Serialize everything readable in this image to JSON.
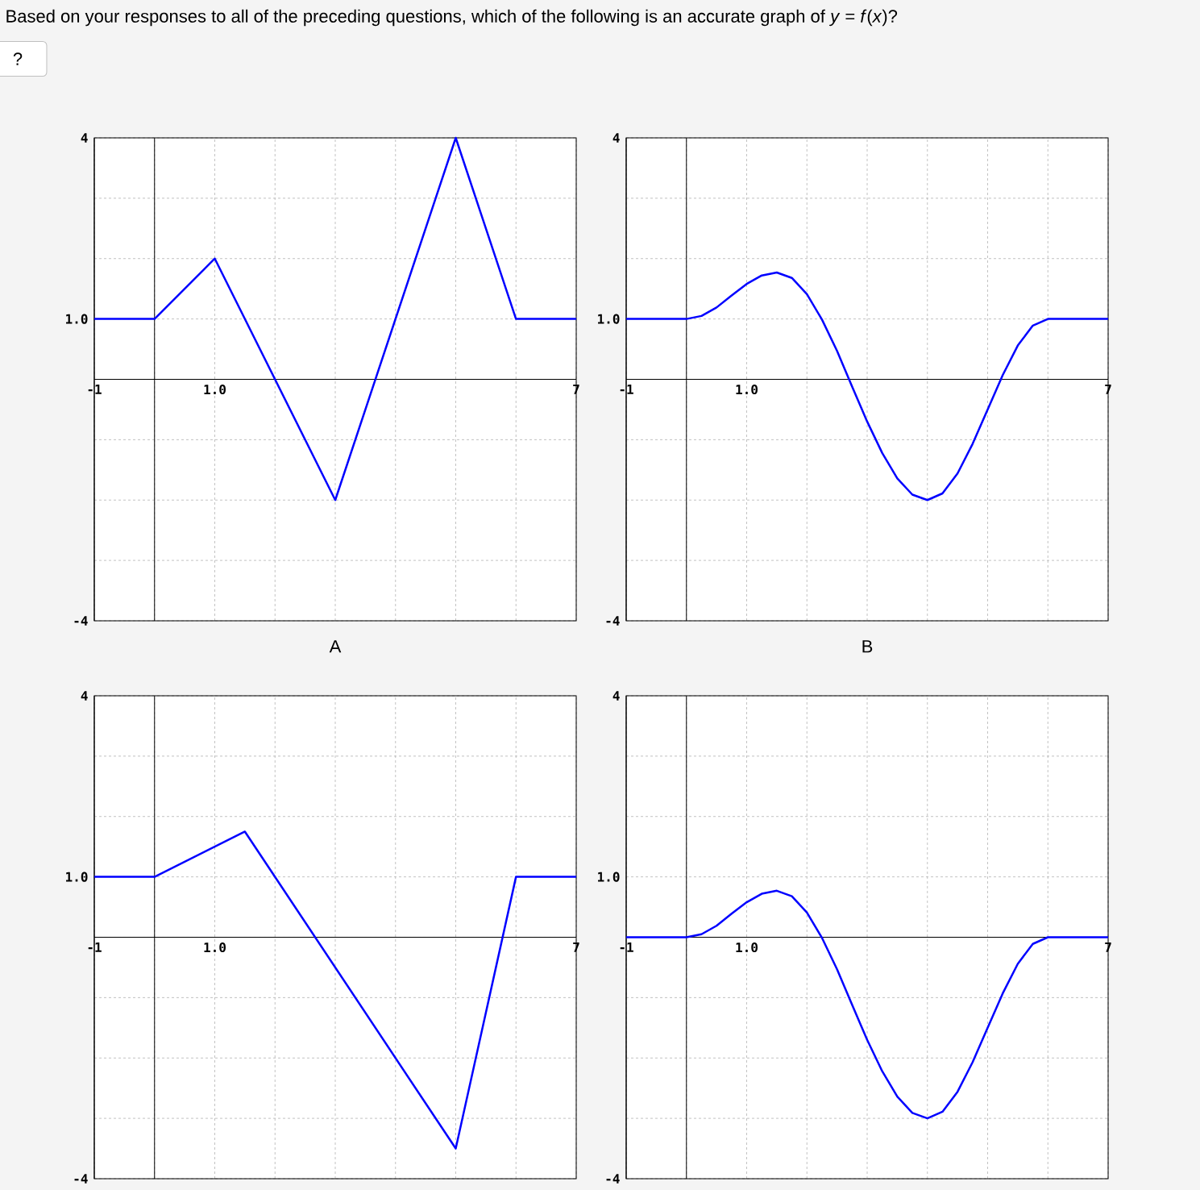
{
  "chart_data": [
    {
      "type": "line",
      "title": "Based on your responses to all of the preceding questions, which of the following is an accurate graph of *y* = *f*(*x*)?",
      "annotations": [
        "?"
      ],
      "xlabel": "A",
      "xlim": [
        -1,
        7
      ],
      "ylim": [
        -4,
        4
      ],
      "xticks": [
        -1,
        {
          "value": 0,
          "label": null
        },
        {
          "value": 1,
          "label": "1.0"
        },
        {
          "value": 2,
          "label": null
        },
        {
          "value": 3,
          "label": null
        },
        {
          "value": 4,
          "label": null
        },
        {
          "value": 5,
          "label": null
        },
        {
          "value": 6,
          "label": null
        },
        7
      ],
      "yticks": [
        -4,
        {
          "value": -3,
          "label": null
        },
        {
          "value": -2,
          "label": null
        },
        {
          "value": -1,
          "label": null
        },
        {
          "value": 0,
          "label": null
        },
        {
          "value": 1,
          "label": "1.0"
        },
        {
          "value": 2,
          "label": null
        },
        {
          "value": 3,
          "label": null
        },
        4
      ],
      "grid": true,
      "series": [
        {
          "color": "#0000ff",
          "x": [
            -1,
            0,
            1,
            3,
            5,
            6,
            7
          ],
          "values": [
            1,
            1,
            2,
            -2,
            4,
            1,
            1
          ]
        }
      ]
    },
    {
      "type": "line",
      "xlabel": "B",
      "xlim": [
        -1,
        7
      ],
      "ylim": [
        -4,
        4
      ],
      "xticks": [
        -1,
        {
          "value": 0,
          "label": null
        },
        {
          "value": 1,
          "label": "1.0"
        },
        {
          "value": 2,
          "label": null
        },
        {
          "value": 3,
          "label": null
        },
        {
          "value": 4,
          "label": null
        },
        {
          "value": 5,
          "label": null
        },
        {
          "value": 6,
          "label": null
        },
        7
      ],
      "yticks": [
        -4,
        {
          "value": -3,
          "label": null
        },
        {
          "value": -2,
          "label": null
        },
        {
          "value": -1,
          "label": null
        },
        {
          "value": 0,
          "label": null
        },
        {
          "value": 1,
          "label": "1.0"
        },
        {
          "value": 2,
          "label": null
        },
        {
          "value": 3,
          "label": null
        },
        4
      ],
      "grid": true,
      "series": [
        {
          "color": "#0000ff",
          "x": [
            -1,
            0,
            0.25,
            0.5,
            0.75,
            1,
            1.25,
            1.5,
            1.75,
            2,
            2.25,
            2.5,
            2.75,
            3,
            3.25,
            3.5,
            3.75,
            4,
            4.25,
            4.5,
            4.75,
            5,
            5.25,
            5.5,
            5.75,
            6,
            7
          ],
          "values": [
            1,
            1,
            1.05,
            1.19,
            1.39,
            1.58,
            1.72,
            1.77,
            1.68,
            1.41,
            0.99,
            0.47,
            -0.12,
            -0.7,
            -1.22,
            -1.64,
            -1.91,
            -2,
            -1.89,
            -1.56,
            -1.07,
            -0.5,
            0.07,
            0.56,
            0.89,
            1,
            1
          ]
        }
      ]
    },
    {
      "type": "line",
      "xlim": [
        -1,
        7
      ],
      "ylim": [
        -4,
        4
      ],
      "xticks": [
        -1,
        {
          "value": 0,
          "label": null
        },
        {
          "value": 1,
          "label": "1.0"
        },
        {
          "value": 2,
          "label": null
        },
        {
          "value": 3,
          "label": null
        },
        {
          "value": 4,
          "label": null
        },
        {
          "value": 5,
          "label": null
        },
        {
          "value": 6,
          "label": null
        },
        7
      ],
      "yticks": [
        -4,
        {
          "value": -3,
          "label": null
        },
        {
          "value": -2,
          "label": null
        },
        {
          "value": -1,
          "label": null
        },
        {
          "value": 0,
          "label": null
        },
        {
          "value": 1,
          "label": "1.0"
        },
        {
          "value": 2,
          "label": null
        },
        {
          "value": 3,
          "label": null
        },
        4
      ],
      "grid": true,
      "series": [
        {
          "color": "#0000ff",
          "x": [
            -1,
            0,
            1.5,
            5,
            6,
            7
          ],
          "values": [
            1,
            1,
            1.75,
            -3.5,
            1,
            1
          ]
        }
      ]
    },
    {
      "type": "line",
      "xlim": [
        -1,
        7
      ],
      "ylim": [
        -4,
        4
      ],
      "xticks": [
        -1,
        {
          "value": 0,
          "label": null
        },
        {
          "value": 1,
          "label": "1.0"
        },
        {
          "value": 2,
          "label": null
        },
        {
          "value": 3,
          "label": null
        },
        {
          "value": 4,
          "label": null
        },
        {
          "value": 5,
          "label": null
        },
        {
          "value": 6,
          "label": null
        },
        7
      ],
      "yticks": [
        -4,
        {
          "value": -3,
          "label": null
        },
        {
          "value": -2,
          "label": null
        },
        {
          "value": -1,
          "label": null
        },
        {
          "value": 0,
          "label": null
        },
        {
          "value": 1,
          "label": "1.0"
        },
        {
          "value": 2,
          "label": null
        },
        {
          "value": 3,
          "label": null
        },
        4
      ],
      "grid": true,
      "series": [
        {
          "color": "#0000ff",
          "x": [
            -1,
            0,
            0.25,
            0.5,
            0.75,
            1,
            1.25,
            1.5,
            1.75,
            2,
            2.25,
            2.5,
            2.75,
            3,
            3.25,
            3.5,
            3.75,
            4,
            4.25,
            4.5,
            4.75,
            5,
            5.25,
            5.5,
            5.75,
            6,
            7
          ],
          "values": [
            0,
            0,
            0.05,
            0.19,
            0.39,
            0.58,
            0.72,
            0.77,
            0.68,
            0.41,
            -0.01,
            -0.53,
            -1.12,
            -1.7,
            -2.22,
            -2.64,
            -2.91,
            -3,
            -2.89,
            -2.56,
            -2.07,
            -1.5,
            -0.93,
            -0.44,
            -0.11,
            0,
            0
          ]
        }
      ]
    }
  ]
}
